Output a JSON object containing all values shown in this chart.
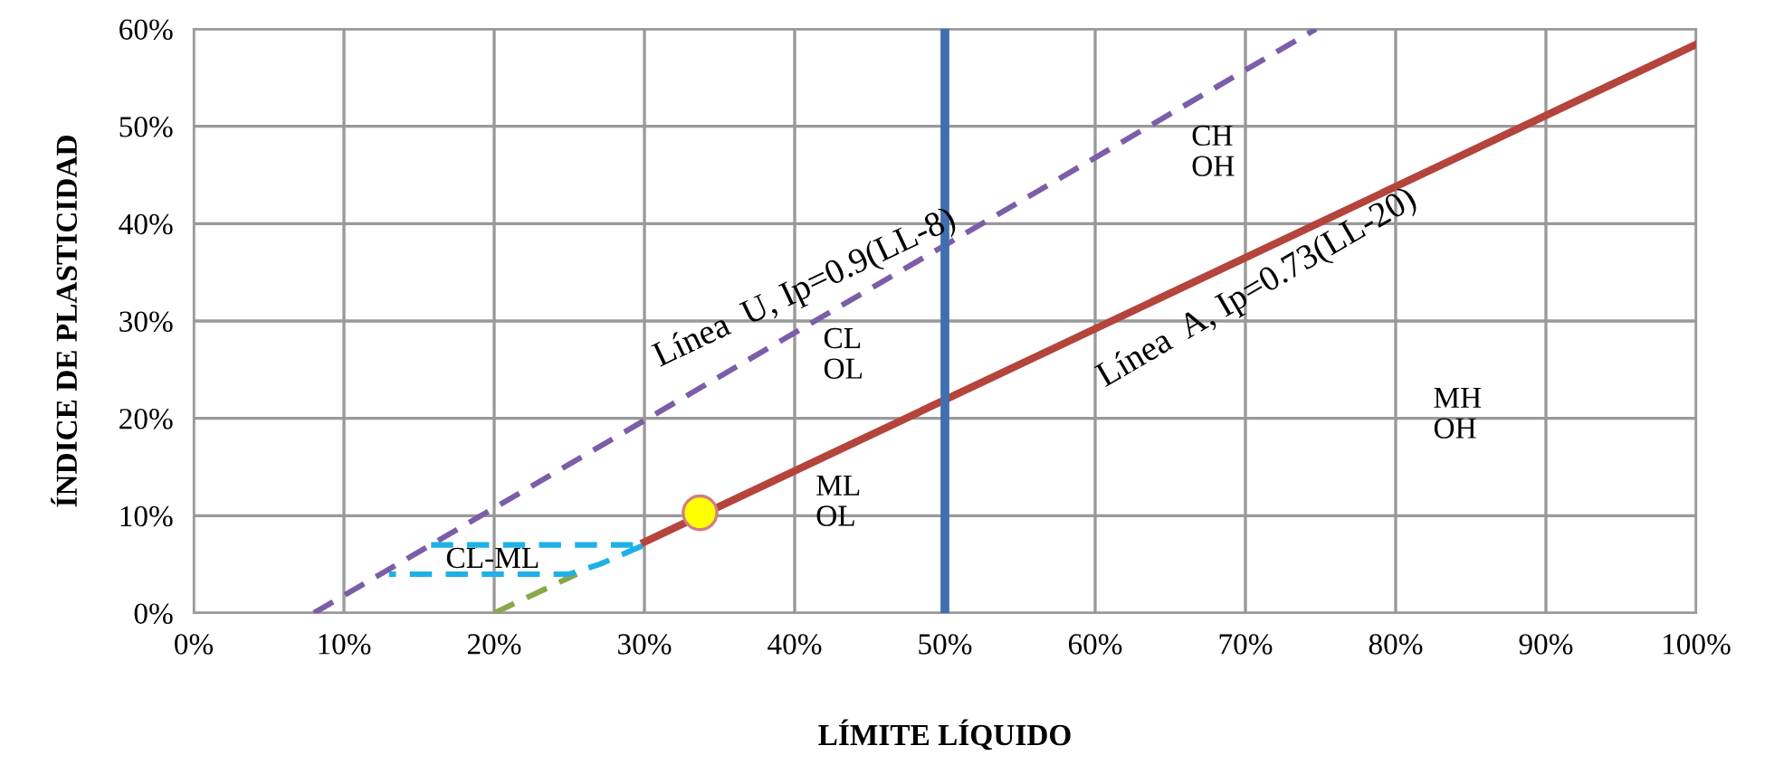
{
  "chart_data": {
    "type": "line",
    "xlabel": "LÍMITE LÍQUIDO",
    "ylabel": "ÍNDICE DE PLASTICIDAD",
    "xlim": [
      0,
      100
    ],
    "ylim": [
      0,
      60
    ],
    "xticks": [
      {
        "value": 0,
        "label": "0%"
      },
      {
        "value": 10,
        "label": "10%"
      },
      {
        "value": 20,
        "label": "20%"
      },
      {
        "value": 30,
        "label": "30%"
      },
      {
        "value": 40,
        "label": "40%"
      },
      {
        "value": 50,
        "label": "50%"
      },
      {
        "value": 60,
        "label": "60%"
      },
      {
        "value": 70,
        "label": "70%"
      },
      {
        "value": 80,
        "label": "80%"
      },
      {
        "value": 90,
        "label": "90%"
      },
      {
        "value": 100,
        "label": "100%"
      }
    ],
    "yticks": [
      {
        "value": 0,
        "label": "0%"
      },
      {
        "value": 10,
        "label": "10%"
      },
      {
        "value": 20,
        "label": "20%"
      },
      {
        "value": 30,
        "label": "30%"
      },
      {
        "value": 40,
        "label": "40%"
      },
      {
        "value": 50,
        "label": "50%"
      },
      {
        "value": 60,
        "label": "60%"
      }
    ],
    "grid": true,
    "series": [
      {
        "line_style": "solid",
        "color": "#b5443c",
        "x": [
          30,
          100
        ],
        "values": [
          7.3,
          58.4
        ]
      },
      {
        "line_style": "dashed",
        "color": "#7b5ea7",
        "x": [
          8,
          74.7
        ],
        "values": [
          0,
          60
        ]
      },
      {
        "line_style": "dashed",
        "color": "#8aa84a",
        "x": [
          20,
          25.5
        ],
        "values": [
          0,
          4
        ]
      },
      {
        "line_style": "dashed",
        "color": "#1fb0e8",
        "x": [
          15.8,
          30,
          27,
          25,
          13
        ],
        "values": [
          7,
          7,
          5,
          4,
          4
        ]
      },
      {
        "type": "scatter",
        "marker": "circle",
        "color": "#ffff00",
        "x": [
          33.7
        ],
        "values": [
          10.3
        ]
      }
    ],
    "ref_lines": [
      {
        "axis": "x",
        "value": 50,
        "color": "#3f6fb0",
        "line_style": "solid"
      }
    ],
    "annotations": [
      "Línea  U, Ip=0.9(LL-8)",
      "Línea  A, Ip=0.73(LL-20)",
      "CL\nOL",
      "ML\nOL",
      "CH\nOH",
      "MH\nOH",
      "CL-ML"
    ]
  }
}
